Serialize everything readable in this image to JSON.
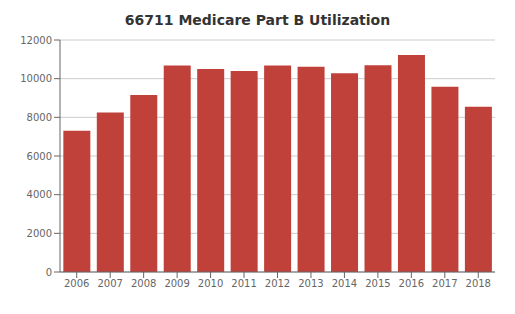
{
  "chart_data": {
    "type": "bar",
    "title": "66711 Medicare Part B Utilization",
    "categories": [
      "2006",
      "2007",
      "2008",
      "2009",
      "2010",
      "2011",
      "2012",
      "2013",
      "2014",
      "2015",
      "2016",
      "2017",
      "2018"
    ],
    "values": [
      7300,
      8250,
      9150,
      10680,
      10500,
      10400,
      10680,
      10620,
      10280,
      10700,
      11220,
      9580,
      8550
    ],
    "color": "#c0403a",
    "ylim": [
      0,
      12000
    ],
    "yticks": [
      0,
      2000,
      4000,
      6000,
      8000,
      10000,
      12000
    ],
    "grid": true
  }
}
